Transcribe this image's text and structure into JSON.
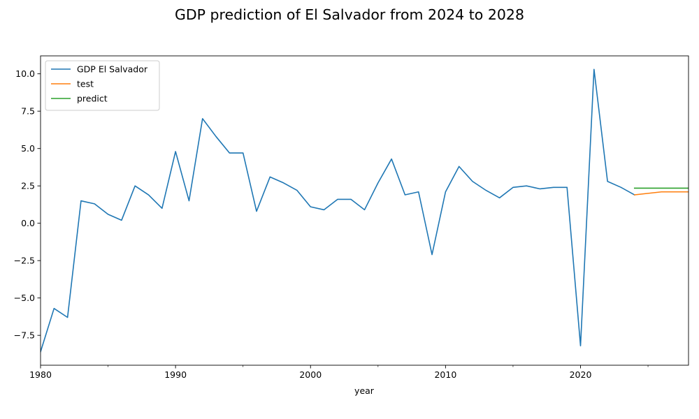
{
  "chart_data": {
    "type": "line",
    "title": "GDP prediction of El Salvador from 2024 to 2028",
    "xlabel": "year",
    "ylabel": "",
    "xlim": [
      1980,
      2028
    ],
    "ylim": [
      -9.5,
      11.2
    ],
    "x_ticks": [
      {
        "value": 1980,
        "label": "1980"
      },
      {
        "value": 1990,
        "label": "1990"
      },
      {
        "value": 2000,
        "label": "2000"
      },
      {
        "value": 2010,
        "label": "2010"
      },
      {
        "value": 2020,
        "label": "2020"
      }
    ],
    "x_minor_ticks": [
      1985,
      1995,
      2005,
      2015,
      2025
    ],
    "y_ticks": [
      {
        "value": -7.5,
        "label": "−7.5"
      },
      {
        "value": -5.0,
        "label": "−5.0"
      },
      {
        "value": -2.5,
        "label": "−2.5"
      },
      {
        "value": 0.0,
        "label": "0.0"
      },
      {
        "value": 2.5,
        "label": "2.5"
      },
      {
        "value": 5.0,
        "label": "5.0"
      },
      {
        "value": 7.5,
        "label": "7.5"
      },
      {
        "value": 10.0,
        "label": "10.0"
      }
    ],
    "legend_position": "top-left",
    "grid": false,
    "series": [
      {
        "name": "GDP El Salvador",
        "color": "#1f77b4",
        "x": [
          1980,
          1981,
          1982,
          1983,
          1984,
          1985,
          1986,
          1987,
          1988,
          1989,
          1990,
          1991,
          1992,
          1993,
          1994,
          1995,
          1996,
          1997,
          1998,
          1999,
          2000,
          2001,
          2002,
          2003,
          2004,
          2005,
          2006,
          2007,
          2008,
          2009,
          2010,
          2011,
          2012,
          2013,
          2014,
          2015,
          2016,
          2017,
          2018,
          2019,
          2020,
          2021,
          2022,
          2023,
          2024
        ],
        "y": [
          -8.6,
          -5.7,
          -6.3,
          1.5,
          1.3,
          0.6,
          0.2,
          2.5,
          1.9,
          1.0,
          4.8,
          1.5,
          7.0,
          5.8,
          4.7,
          4.7,
          0.8,
          3.1,
          2.7,
          2.2,
          1.1,
          0.9,
          1.6,
          1.6,
          0.9,
          2.7,
          4.3,
          1.9,
          2.1,
          -2.1,
          2.1,
          3.8,
          2.8,
          2.2,
          1.7,
          2.4,
          2.5,
          2.3,
          2.4,
          2.4,
          -8.2,
          10.3,
          2.8,
          2.4,
          1.9
        ]
      },
      {
        "name": "test",
        "color": "#ff7f0e",
        "x": [
          2024,
          2025,
          2026,
          2027,
          2028
        ],
        "y": [
          1.9,
          2.0,
          2.1,
          2.1,
          2.1
        ]
      },
      {
        "name": "predict",
        "color": "#2ca02c",
        "x": [
          2024,
          2025,
          2026,
          2027,
          2028
        ],
        "y": [
          2.35,
          2.35,
          2.35,
          2.35,
          2.35
        ]
      }
    ]
  }
}
